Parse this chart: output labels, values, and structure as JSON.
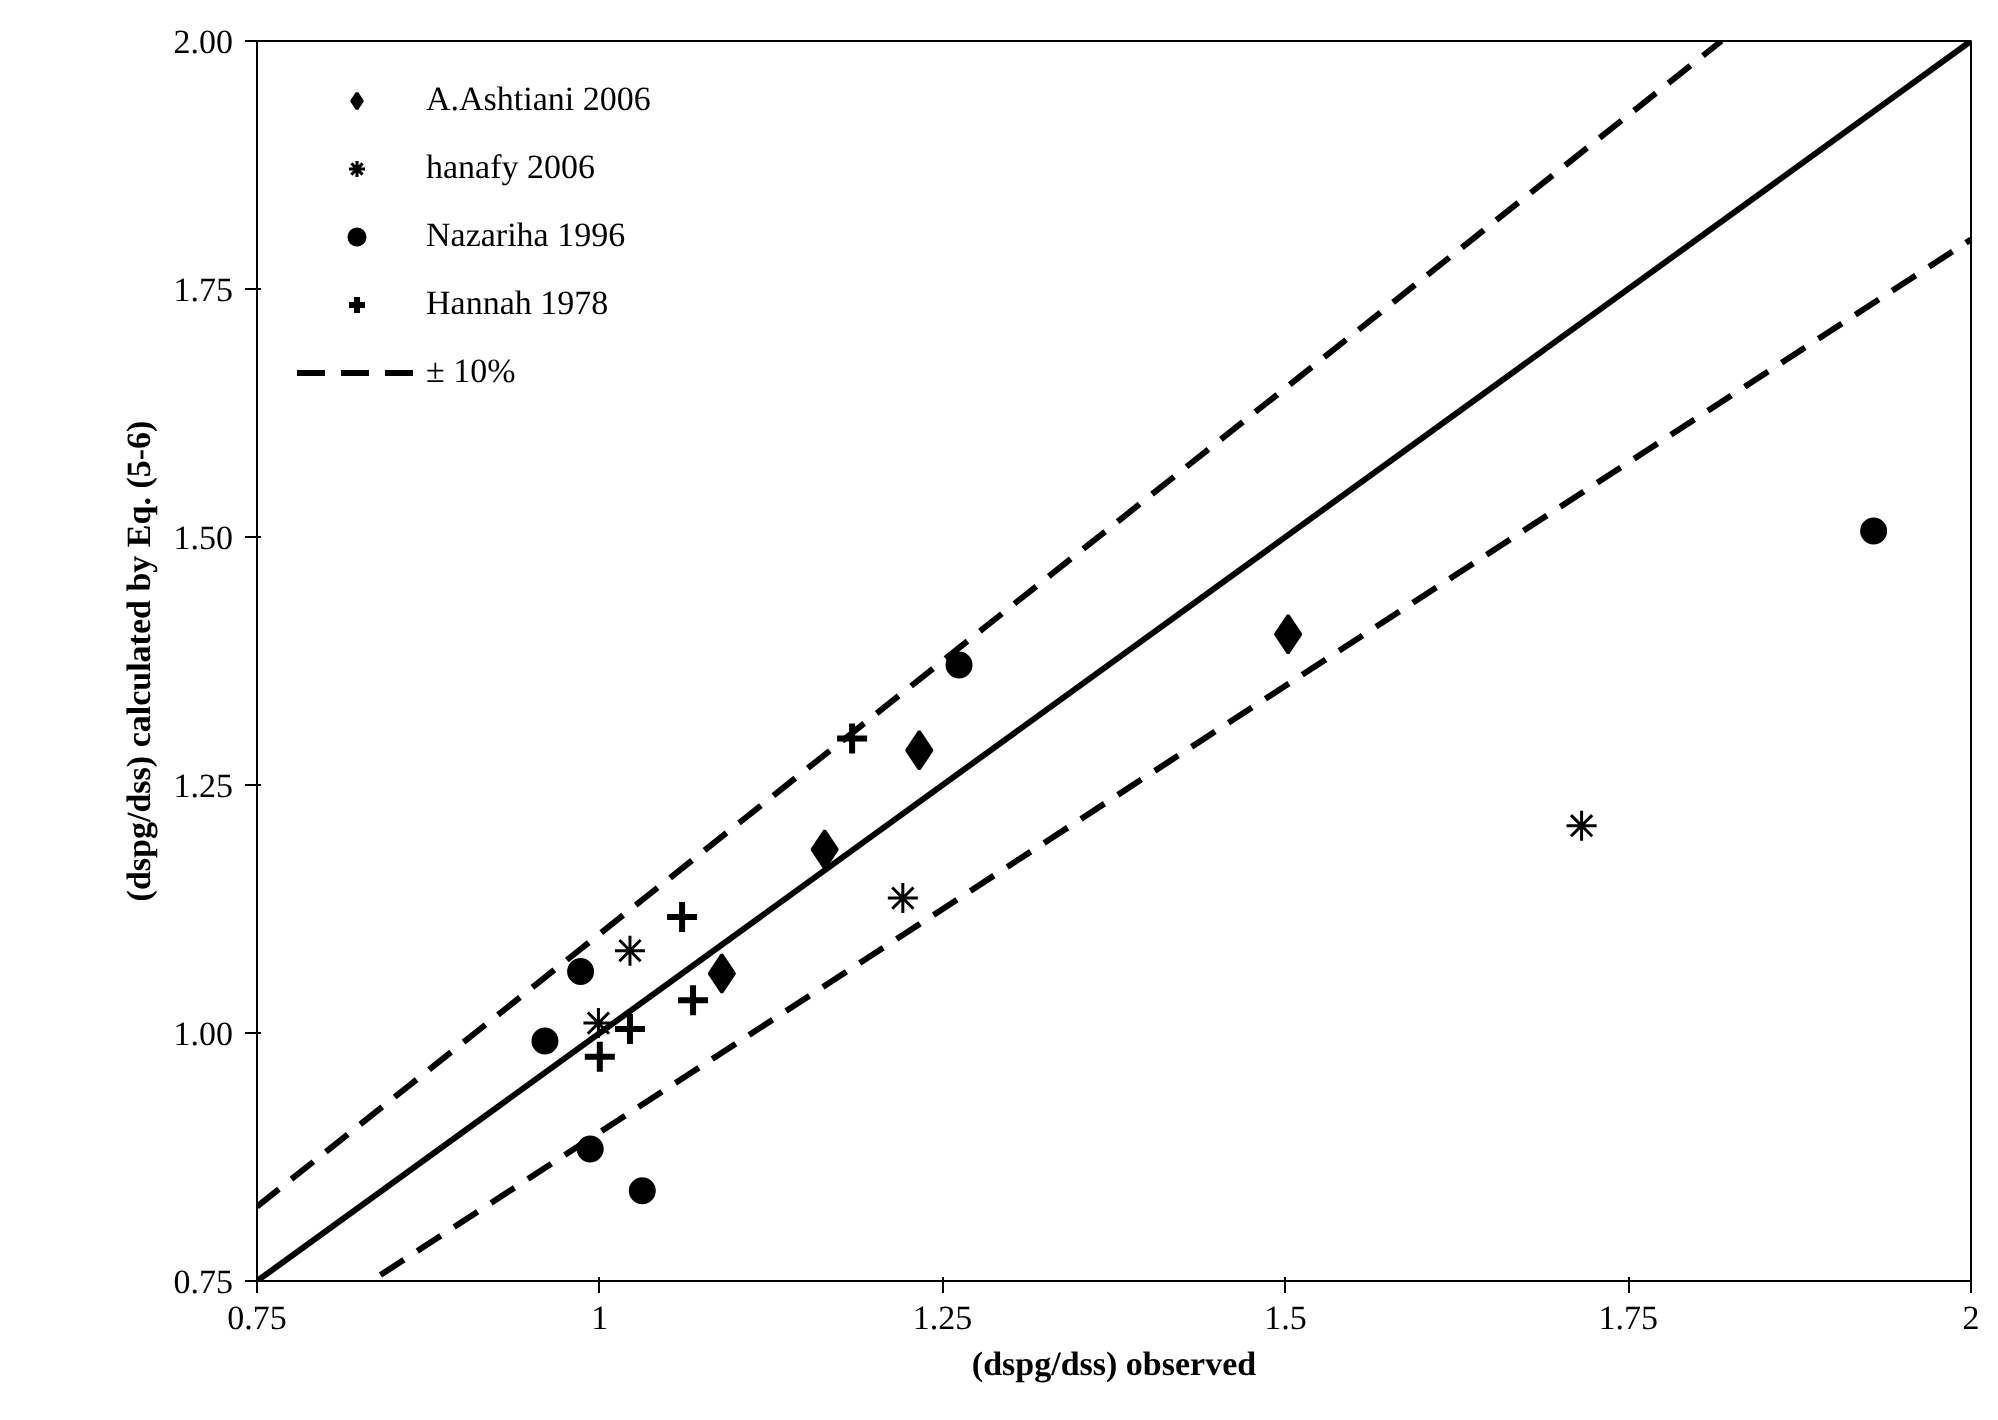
{
  "chart_data": {
    "type": "scatter",
    "xlabel": "(dspg/dss) observed",
    "ylabel": "(dspg/dss) calculated by Eq. (5-6)",
    "xlim": [
      0.75,
      2
    ],
    "ylim": [
      0.75,
      2
    ],
    "xticks": [
      0.75,
      1,
      1.25,
      1.5,
      1.75,
      2
    ],
    "yticks": [
      {
        "value": 0.75,
        "label": "0.75"
      },
      {
        "value": 1,
        "label": "1.00"
      },
      {
        "value": 1.25,
        "label": "1.25"
      },
      {
        "value": 1.5,
        "label": "1.50"
      },
      {
        "value": 1.75,
        "label": "1.75"
      },
      {
        "value": 2,
        "label": "2.00"
      }
    ],
    "grid": false,
    "legend": "top left",
    "series": [
      {
        "name": "A.Ashtiani 2006",
        "color": "#000000",
        "marker": "diamond",
        "x": [
          1.233,
          1.164,
          1.089,
          1.502
        ],
        "values": [
          1.285,
          1.185,
          1.06,
          1.402
        ]
      },
      {
        "name": "hanafy 2006",
        "color": "#000000",
        "x": [
          1.022,
          0.999,
          1.221,
          1.716
        ],
        "values": [
          1.083,
          1.01,
          1.136,
          1.209
        ]
      },
      {
        "name": "Nazariha 1996",
        "color": "#000000",
        "marker": "circle",
        "x": [
          1.262,
          0.986,
          0.96,
          0.993,
          1.031,
          1.929
        ],
        "values": [
          1.371,
          1.062,
          0.992,
          0.883,
          0.841,
          1.506
        ]
      },
      {
        "name": "Hannah 1978",
        "color": "#000000",
        "marker": "cross",
        "x": [
          1.184,
          1.06,
          1.068,
          1.022,
          1.0
        ],
        "values": [
          1.297,
          1.117,
          1.033,
          1.004,
          0.976
        ]
      },
      {
        "name": "± 10%",
        "type": "line",
        "line_style": "dashed",
        "color": "#000000",
        "x": [
          0.75,
          1.818
        ],
        "values": [
          0.825,
          2.0
        ]
      },
      {
        "type": "line",
        "line_style": "dashed",
        "color": "#000000",
        "x": [
          0.84,
          2.0
        ],
        "values": [
          0.756,
          1.8
        ]
      },
      {
        "type": "line",
        "line_style": "solid",
        "color": "#000000",
        "x": [
          0.75,
          2.0
        ],
        "values": [
          0.75,
          2.0
        ]
      }
    ]
  }
}
